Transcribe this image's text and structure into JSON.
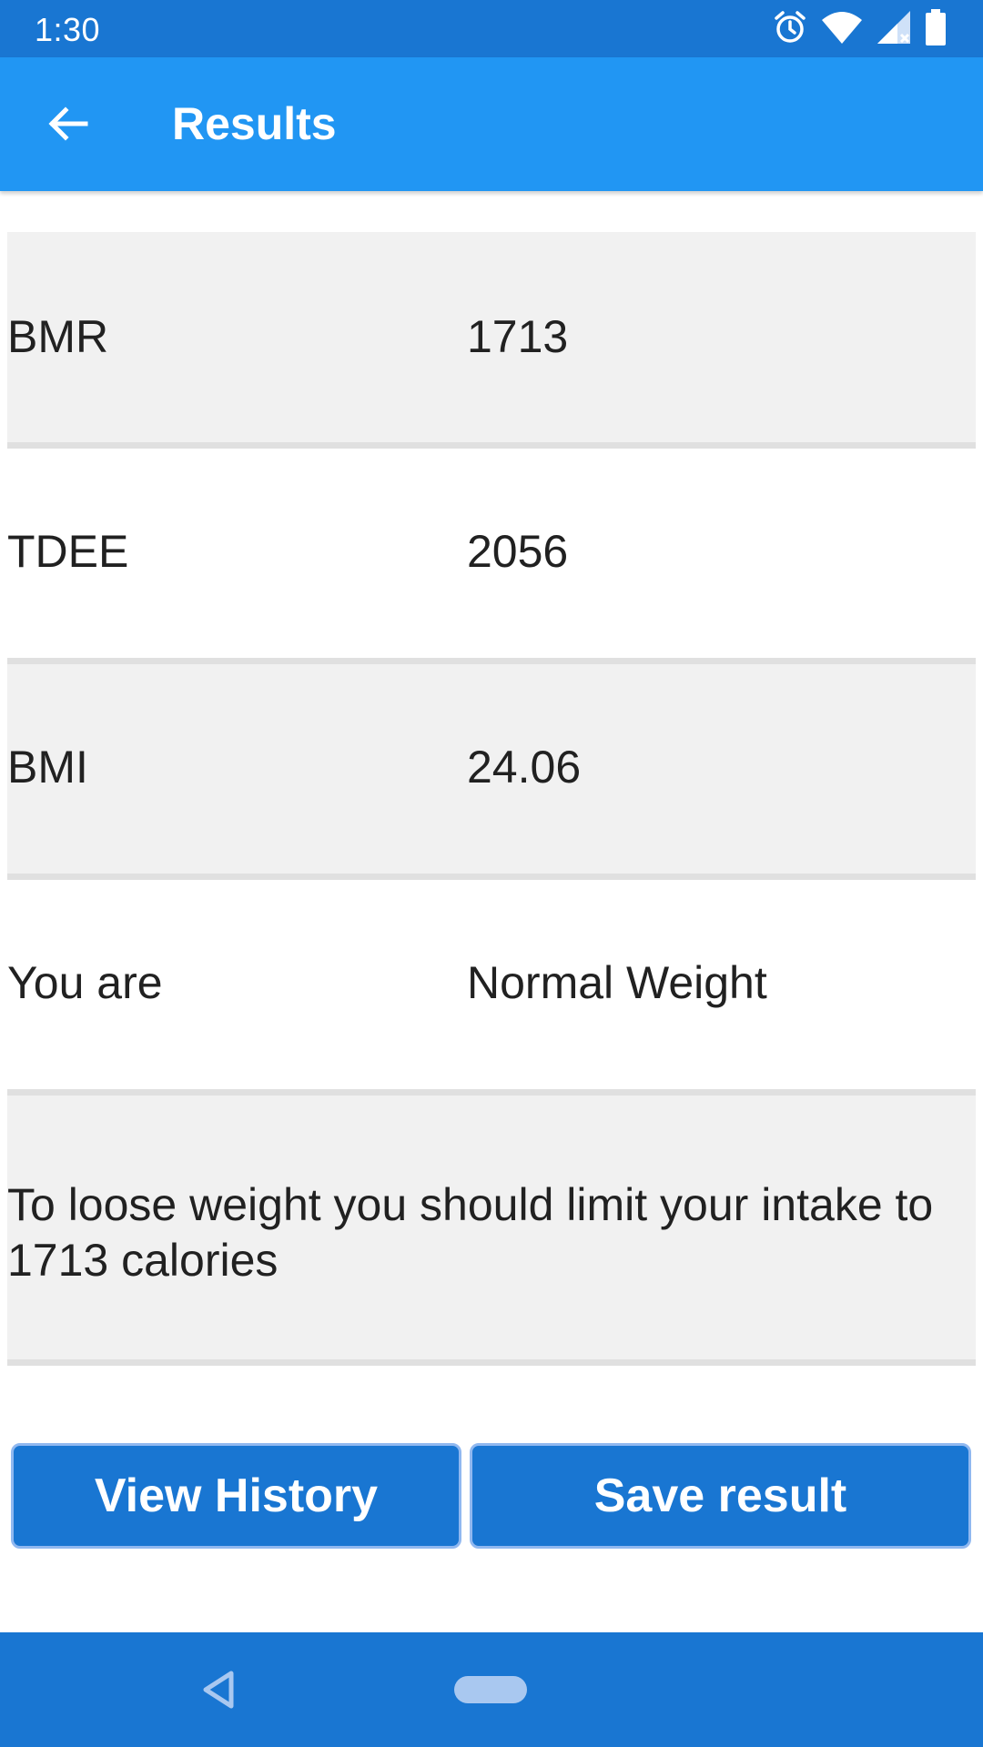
{
  "status_bar": {
    "time": "1:30",
    "icons": [
      "alarm-icon",
      "wifi-icon",
      "signal-icon",
      "battery-icon"
    ]
  },
  "app_bar": {
    "title": "Results",
    "back_icon": "arrow-back-icon"
  },
  "results": [
    {
      "label": "BMR",
      "value": "1713"
    },
    {
      "label": "TDEE",
      "value": "2056"
    },
    {
      "label": "BMI",
      "value": "24.06"
    },
    {
      "label": "You are",
      "value": "Normal Weight"
    }
  ],
  "advice": "To loose weight you should limit your intake to 1713 calories",
  "buttons": {
    "view_history": "View History",
    "save_result": "Save result"
  },
  "colors": {
    "status_bar": "#1976d2",
    "app_bar": "#2196f3",
    "button": "#1976d2",
    "row_shade": "#f1f1f1"
  }
}
